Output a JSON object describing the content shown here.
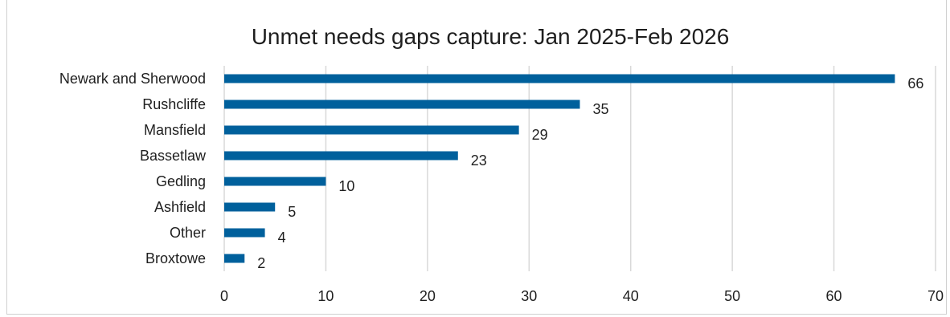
{
  "chart_data": {
    "type": "bar",
    "orientation": "horizontal",
    "title": "Unmet needs gaps capture: Jan 2025-Feb 2026",
    "categories": [
      "Newark and Sherwood",
      "Rushcliffe",
      "Mansfield",
      "Bassetlaw",
      "Gedling",
      "Ashfield",
      "Other",
      "Broxtowe"
    ],
    "values": [
      66,
      35,
      29,
      23,
      10,
      5,
      4,
      2
    ],
    "xlim": [
      0,
      70
    ],
    "xticks": [
      0,
      10,
      20,
      30,
      40,
      50,
      60,
      70
    ],
    "grid": true,
    "legend": "none",
    "bar_color": "#00609c",
    "xlabel": "",
    "ylabel": ""
  }
}
